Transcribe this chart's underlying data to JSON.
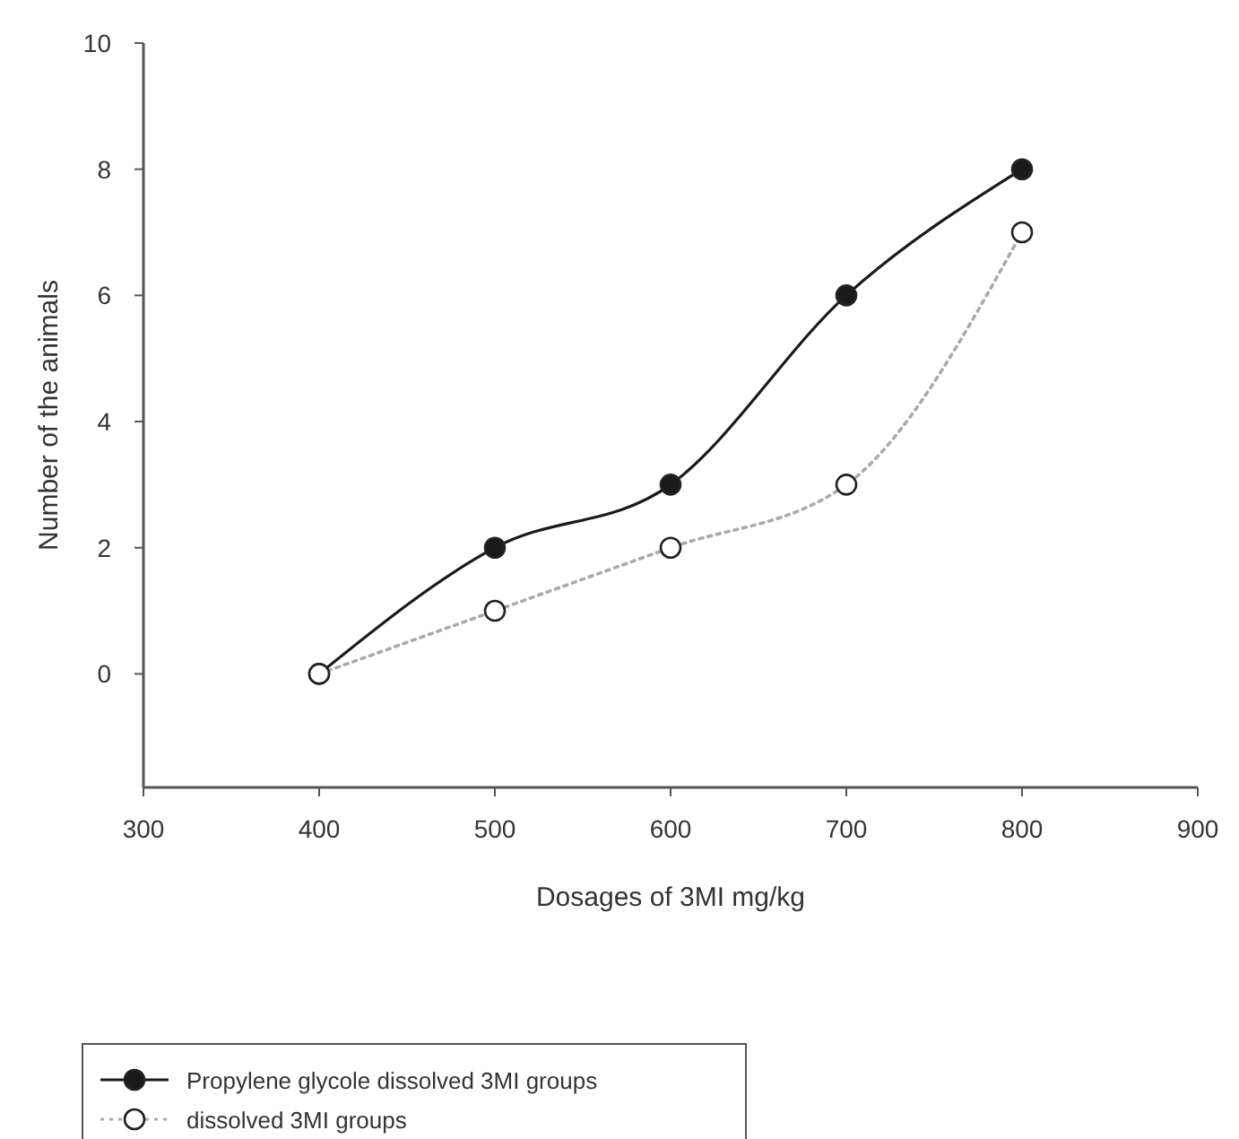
{
  "chart_data": {
    "type": "line",
    "xlabel": "Dosages of 3MI mg/kg",
    "ylabel": "Number of the animals",
    "x": [
      400,
      500,
      600,
      700,
      800
    ],
    "series": [
      {
        "name": "Propylene glycole dissolved 3MI groups",
        "color": "#1a1a1a",
        "line_style": "solid",
        "values": [
          0,
          2,
          3,
          6,
          8
        ]
      },
      {
        "name": "dissolved 3MI groups",
        "color": "#aaaaaa",
        "line_style": "dotted",
        "values": [
          0,
          1,
          2,
          3,
          7
        ]
      }
    ],
    "xlim": [
      300,
      900
    ],
    "xticks": [
      300,
      400,
      500,
      600,
      700,
      800,
      900
    ],
    "ylim": [
      -1.8,
      10
    ],
    "yticks": [
      0,
      2,
      4,
      6,
      8,
      10
    ],
    "marker": "circle",
    "grid": false,
    "legend": "bottom left"
  }
}
